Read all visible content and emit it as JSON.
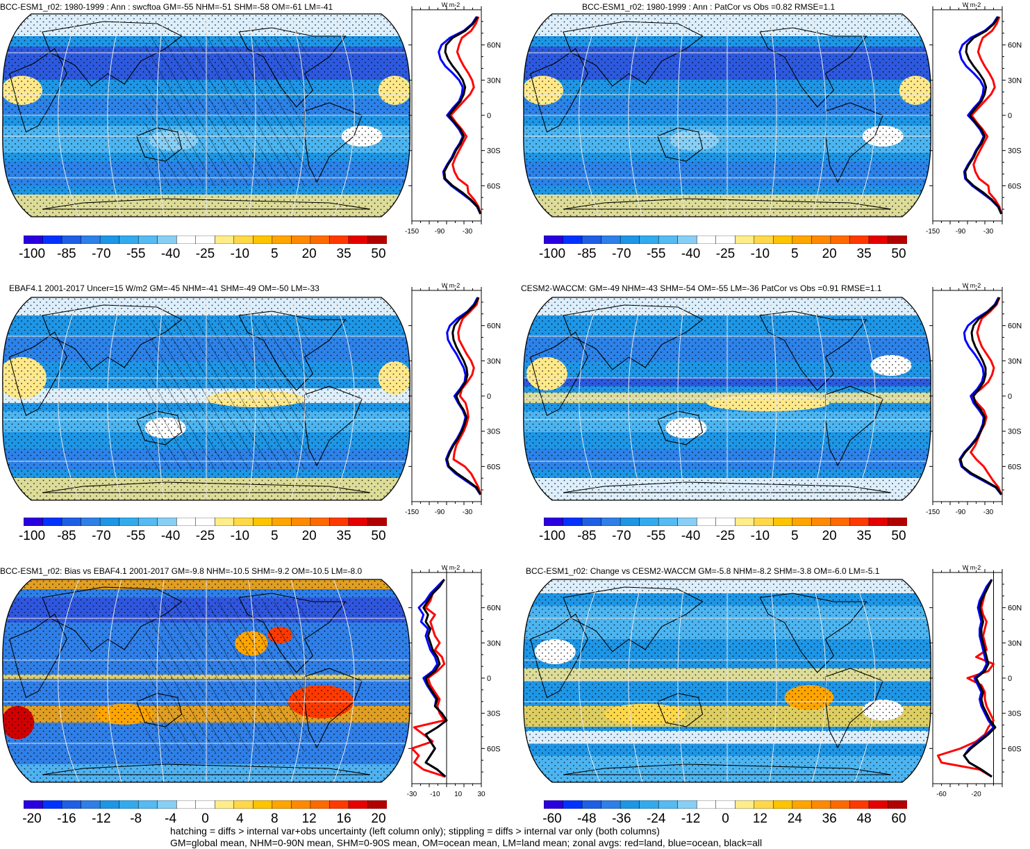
{
  "figure": {
    "footnote_line1": "hatching = diffs > internal var+obs uncertainty (left column only); stippling = diffs > internal var only (both columns)",
    "footnote_line2": "GM=global mean, NHM=0-90N mean, SHM=0-90S mean, OM=ocean mean, LM=land mean; zonal avgs: red=land, blue=ocean, black=all"
  },
  "colors": {
    "land_line": "#ff0000",
    "ocean_line": "#0000ff",
    "all_line": "#000000",
    "grid": "#e8e8e8"
  },
  "chart_data": [
    {
      "type": "heatmap",
      "id": "p1",
      "title": "BCC-ESM1_r02: 1980-1999 : Ann : swcftoa GM=-55 NHM=-51 SHM=-58 OM=-61 LM=-41",
      "colorbar": {
        "colors": [
          "#2a00e0",
          "#0033ff",
          "#1f5fe6",
          "#2f7fe8",
          "#1e96e6",
          "#33aaee",
          "#55bbf2",
          "#88cff5",
          "#ffffff",
          "#ffffff",
          "#ffed8a",
          "#ffd84a",
          "#ffc400",
          "#ffa500",
          "#ff8a00",
          "#ff6a00",
          "#ff3a00",
          "#e60000",
          "#b30000"
        ],
        "ticks": [
          "-100",
          "-85",
          "-70",
          "-55",
          "-40",
          "-25",
          "-10",
          "5",
          "20",
          "35",
          "50"
        ]
      },
      "profile": {
        "unit": "W m-2",
        "xticks": [
          "-150",
          "-90",
          "-30"
        ],
        "xlim": [
          -150,
          0
        ],
        "yticks": [
          "60N",
          "30N",
          "0",
          "30S",
          "60S"
        ],
        "ylim": [
          -90,
          90
        ],
        "lat": [
          -84,
          -78,
          -72,
          -66,
          -60,
          -54,
          -48,
          -42,
          -36,
          -30,
          -24,
          -18,
          -12,
          -6,
          0,
          6,
          12,
          18,
          24,
          30,
          36,
          42,
          48,
          54,
          60,
          66,
          72,
          78,
          84
        ],
        "all": [
          -2,
          -8,
          -22,
          -40,
          -62,
          -78,
          -80,
          -72,
          -62,
          -55,
          -45,
          -38,
          -45,
          -58,
          -70,
          -58,
          -45,
          -38,
          -35,
          -40,
          -50,
          -62,
          -72,
          -78,
          -76,
          -62,
          -35,
          -18,
          -8
        ],
        "ocean": [
          -2,
          -9,
          -24,
          -44,
          -65,
          -80,
          -82,
          -74,
          -64,
          -57,
          -47,
          -40,
          -48,
          -60,
          -74,
          -62,
          -48,
          -42,
          -40,
          -48,
          -62,
          -78,
          -88,
          -92,
          -86,
          -68,
          -38,
          -20,
          -10
        ],
        "land": [
          -2,
          -6,
          -15,
          -28,
          -30,
          -50,
          -58,
          -62,
          -56,
          -48,
          -40,
          -32,
          -42,
          -55,
          -66,
          -52,
          -38,
          -24,
          -16,
          -20,
          -28,
          -38,
          -46,
          -52,
          -48,
          -42,
          -22,
          -12,
          -6
        ]
      }
    },
    {
      "type": "heatmap",
      "id": "p2",
      "title": "BCC-ESM1_r02: 1980-1999 : Ann : PatCor vs Obs =0.82 RMSE=1.1",
      "colorbar": {
        "colors": [
          "#2a00e0",
          "#0033ff",
          "#1f5fe6",
          "#2f7fe8",
          "#1e96e6",
          "#33aaee",
          "#55bbf2",
          "#88cff5",
          "#ffffff",
          "#ffffff",
          "#ffed8a",
          "#ffd84a",
          "#ffc400",
          "#ffa500",
          "#ff8a00",
          "#ff6a00",
          "#ff3a00",
          "#e60000",
          "#b30000"
        ],
        "ticks": [
          "-100",
          "-85",
          "-70",
          "-55",
          "-40",
          "-25",
          "-10",
          "5",
          "20",
          "35",
          "50"
        ]
      },
      "profile": {
        "unit": "W m-2",
        "xticks": [
          "-150",
          "-90",
          "-30"
        ],
        "xlim": [
          -150,
          0
        ],
        "yticks": [
          "60N",
          "30N",
          "0",
          "30S",
          "60S"
        ],
        "ylim": [
          -90,
          90
        ],
        "lat": [
          -84,
          -78,
          -72,
          -66,
          -60,
          -54,
          -48,
          -42,
          -36,
          -30,
          -24,
          -18,
          -12,
          -6,
          0,
          6,
          12,
          18,
          24,
          30,
          36,
          42,
          48,
          54,
          60,
          66,
          72,
          78,
          84
        ],
        "all": [
          -2,
          -8,
          -22,
          -40,
          -62,
          -78,
          -80,
          -72,
          -62,
          -55,
          -45,
          -38,
          -45,
          -58,
          -70,
          -58,
          -45,
          -38,
          -35,
          -40,
          -50,
          -62,
          -72,
          -78,
          -76,
          -62,
          -35,
          -18,
          -8
        ],
        "ocean": [
          -2,
          -9,
          -24,
          -44,
          -65,
          -80,
          -82,
          -74,
          -64,
          -57,
          -47,
          -40,
          -48,
          -60,
          -74,
          -62,
          -48,
          -42,
          -40,
          -48,
          -62,
          -78,
          -88,
          -92,
          -86,
          -68,
          -38,
          -20,
          -10
        ],
        "land": [
          -2,
          -6,
          -15,
          -28,
          -30,
          -50,
          -58,
          -62,
          -56,
          -48,
          -40,
          -32,
          -42,
          -55,
          -66,
          -52,
          -38,
          -24,
          -16,
          -20,
          -28,
          -38,
          -46,
          -52,
          -48,
          -42,
          -22,
          -12,
          -6
        ]
      }
    },
    {
      "type": "heatmap",
      "id": "p3",
      "title": "EBAF4.1 2001-2017 Uncer=15 W/m2 GM=-45 NHM=-41 SHM=-49 OM=-50 LM=-33",
      "colorbar": {
        "colors": [
          "#2a00e0",
          "#0033ff",
          "#1f5fe6",
          "#2f7fe8",
          "#1e96e6",
          "#33aaee",
          "#55bbf2",
          "#88cff5",
          "#ffffff",
          "#ffffff",
          "#ffed8a",
          "#ffd84a",
          "#ffc400",
          "#ffa500",
          "#ff8a00",
          "#ff6a00",
          "#ff3a00",
          "#e60000",
          "#b30000"
        ],
        "ticks": [
          "-100",
          "-85",
          "-70",
          "-55",
          "-40",
          "-25",
          "-10",
          "5",
          "20",
          "35",
          "50"
        ]
      },
      "profile": {
        "unit": "W m-2",
        "xticks": [
          "-150",
          "-90",
          "-30"
        ],
        "xlim": [
          -150,
          0
        ],
        "yticks": [
          "60N",
          "30N",
          "0",
          "30S",
          "60S"
        ],
        "ylim": [
          -90,
          90
        ],
        "lat": [
          -84,
          -78,
          -72,
          -66,
          -60,
          -54,
          -48,
          -42,
          -36,
          -30,
          -24,
          -18,
          -12,
          -6,
          0,
          6,
          12,
          18,
          24,
          30,
          36,
          42,
          48,
          54,
          60,
          66,
          72,
          78,
          84
        ],
        "all": [
          -2,
          -10,
          -30,
          -52,
          -70,
          -74,
          -68,
          -60,
          -50,
          -42,
          -36,
          -32,
          -38,
          -48,
          -54,
          -44,
          -34,
          -30,
          -32,
          -38,
          -46,
          -54,
          -60,
          -62,
          -58,
          -46,
          -28,
          -14,
          -6
        ],
        "ocean": [
          -2,
          -12,
          -34,
          -56,
          -72,
          -76,
          -70,
          -62,
          -52,
          -44,
          -38,
          -34,
          -40,
          -50,
          -58,
          -46,
          -36,
          -34,
          -38,
          -46,
          -54,
          -64,
          -72,
          -74,
          -68,
          -52,
          -30,
          -16,
          -8
        ],
        "land": [
          -2,
          -6,
          -14,
          -22,
          -36,
          -60,
          -58,
          -54,
          -46,
          -38,
          -32,
          -28,
          -30,
          -34,
          -46,
          -42,
          -30,
          -20,
          -16,
          -22,
          -32,
          -40,
          -48,
          -50,
          -46,
          -40,
          -24,
          -10,
          -6
        ]
      }
    },
    {
      "type": "heatmap",
      "id": "p4",
      "title": "CESM2-WACCM: GM=-49 NHM=-43 SHM=-54 OM=-55 LM=-36 PatCor vs Obs =0.91 RMSE=1.1",
      "colorbar": {
        "colors": [
          "#2a00e0",
          "#0033ff",
          "#1f5fe6",
          "#2f7fe8",
          "#1e96e6",
          "#33aaee",
          "#55bbf2",
          "#88cff5",
          "#ffffff",
          "#ffffff",
          "#ffed8a",
          "#ffd84a",
          "#ffc400",
          "#ffa500",
          "#ff8a00",
          "#ff6a00",
          "#ff3a00",
          "#e60000",
          "#b30000"
        ],
        "ticks": [
          "-100",
          "-85",
          "-70",
          "-55",
          "-40",
          "-25",
          "-10",
          "5",
          "20",
          "35",
          "50"
        ]
      },
      "profile": {
        "unit": "W m-2",
        "xticks": [
          "-150",
          "-90",
          "-30"
        ],
        "xlim": [
          -150,
          0
        ],
        "yticks": [
          "60N",
          "30N",
          "0",
          "30S",
          "60S"
        ],
        "ylim": [
          -90,
          90
        ],
        "lat": [
          -84,
          -78,
          -72,
          -66,
          -60,
          -54,
          -48,
          -42,
          -36,
          -30,
          -24,
          -18,
          -12,
          -6,
          0,
          6,
          12,
          18,
          24,
          30,
          36,
          42,
          48,
          54,
          60,
          66,
          72,
          78,
          84
        ],
        "all": [
          -2,
          -12,
          -38,
          -66,
          -86,
          -90,
          -80,
          -66,
          -54,
          -46,
          -40,
          -38,
          -46,
          -58,
          -62,
          -50,
          -40,
          -36,
          -36,
          -42,
          -50,
          -58,
          -64,
          -66,
          -62,
          -50,
          -30,
          -14,
          -6
        ],
        "ocean": [
          -2,
          -14,
          -42,
          -70,
          -88,
          -92,
          -82,
          -68,
          -56,
          -48,
          -42,
          -40,
          -50,
          -62,
          -68,
          -54,
          -44,
          -40,
          -42,
          -50,
          -60,
          -72,
          -80,
          -82,
          -74,
          -56,
          -32,
          -16,
          -8
        ],
        "land": [
          -2,
          -8,
          -20,
          -30,
          -40,
          -56,
          -68,
          -58,
          -52,
          -46,
          -38,
          -34,
          -40,
          -54,
          -66,
          -46,
          -30,
          -22,
          -18,
          -24,
          -34,
          -44,
          -50,
          -54,
          -50,
          -44,
          -26,
          -12,
          -6
        ]
      }
    },
    {
      "type": "heatmap",
      "id": "p5",
      "title": "BCC-ESM1_r02: Bias vs EBAF4.1 2001-2017 GM=-9.8 NHM=-10.5 SHM=-9.2 OM=-10.5 LM=-8.0",
      "colorbar": {
        "colors": [
          "#2a00e0",
          "#0033ff",
          "#1f5fe6",
          "#2f7fe8",
          "#1e96e6",
          "#33aaee",
          "#55bbf2",
          "#88cff5",
          "#ffffff",
          "#ffffff",
          "#ffed8a",
          "#ffd84a",
          "#ffc400",
          "#ffa500",
          "#ff8a00",
          "#ff6a00",
          "#ff3a00",
          "#e60000",
          "#b30000"
        ],
        "ticks": [
          "-20",
          "-16",
          "-12",
          "-8",
          "-4",
          "0",
          "4",
          "8",
          "12",
          "16",
          "20"
        ]
      },
      "profile": {
        "unit": "W m-2",
        "xticks": [
          "-30",
          "-10",
          "10",
          "30"
        ],
        "xlim": [
          -30,
          30
        ],
        "yticks": [
          "60N",
          "30N",
          "0",
          "30S",
          "60S"
        ],
        "ylim": [
          -90,
          90
        ],
        "lat": [
          -84,
          -78,
          -72,
          -66,
          -60,
          -54,
          -48,
          -42,
          -36,
          -30,
          -24,
          -18,
          -12,
          -6,
          0,
          6,
          12,
          18,
          24,
          30,
          36,
          42,
          48,
          54,
          60,
          66,
          72,
          78,
          84
        ],
        "all": [
          -1,
          -8,
          -18,
          -14,
          -10,
          -14,
          -18,
          -8,
          0,
          -4,
          -10,
          -8,
          -12,
          -16,
          -18,
          -10,
          -6,
          -8,
          -12,
          -14,
          -16,
          -14,
          -18,
          -16,
          -20,
          -16,
          -12,
          -6,
          -2
        ],
        "ocean": [
          -1,
          -8,
          -18,
          -14,
          -10,
          -14,
          -18,
          -8,
          0,
          -4,
          -10,
          -9,
          -13,
          -17,
          -20,
          -12,
          -8,
          -10,
          -14,
          -16,
          -18,
          -16,
          -22,
          -20,
          -24,
          -18,
          -14,
          -8,
          -2
        ],
        "land": [
          -1,
          -20,
          -28,
          -24,
          -30,
          -12,
          -20,
          -28,
          -2,
          -6,
          -8,
          -6,
          -10,
          -14,
          -16,
          -8,
          -2,
          -4,
          -10,
          -6,
          -10,
          -12,
          -14,
          -10,
          -18,
          -14,
          -12,
          -8,
          -2
        ]
      }
    },
    {
      "type": "heatmap",
      "id": "p6",
      "title": "BCC-ESM1_r02: Change vs CESM2-WACCM GM=-5.8 NHM=-8.2 SHM=-3.8 OM=-6.0 LM=-5.1",
      "colorbar": {
        "colors": [
          "#2a00e0",
          "#0033ff",
          "#1f5fe6",
          "#2f7fe8",
          "#1e96e6",
          "#33aaee",
          "#55bbf2",
          "#88cff5",
          "#ffffff",
          "#ffffff",
          "#ffed8a",
          "#ffd84a",
          "#ffc400",
          "#ffa500",
          "#ff8a00",
          "#ff6a00",
          "#ff3a00",
          "#e60000",
          "#b30000"
        ],
        "ticks": [
          "-60",
          "-48",
          "-36",
          "-24",
          "-12",
          "0",
          "12",
          "24",
          "36",
          "48",
          "60"
        ]
      },
      "profile": {
        "unit": "W m-2",
        "xticks": [
          "-60",
          "-20"
        ],
        "xlim": [
          -70,
          10
        ],
        "yticks": [
          "60N",
          "30N",
          "0",
          "30S",
          "60S"
        ],
        "ylim": [
          -90,
          90
        ],
        "lat": [
          -84,
          -78,
          -72,
          -66,
          -60,
          -54,
          -48,
          -42,
          -36,
          -30,
          -24,
          -18,
          -12,
          -6,
          0,
          6,
          12,
          18,
          24,
          30,
          36,
          42,
          48,
          54,
          60,
          66,
          72,
          78,
          84
        ],
        "all": [
          -2,
          -14,
          -28,
          -34,
          -26,
          -16,
          -6,
          2,
          -4,
          -8,
          -12,
          -14,
          -12,
          -16,
          -20,
          -10,
          -6,
          -8,
          -10,
          -12,
          -14,
          -14,
          -12,
          -14,
          -16,
          -14,
          -10,
          -6,
          -2
        ],
        "ocean": [
          -2,
          -14,
          -28,
          -34,
          -28,
          -18,
          -8,
          0,
          -6,
          -10,
          -14,
          -16,
          -14,
          -18,
          -22,
          -12,
          -8,
          -10,
          -12,
          -14,
          -16,
          -16,
          -14,
          -16,
          -18,
          -16,
          -12,
          -8,
          -2
        ],
        "land": [
          -2,
          -16,
          -60,
          -64,
          -38,
          -20,
          -10,
          -6,
          0,
          -4,
          -8,
          -10,
          -10,
          -14,
          -30,
          -6,
          0,
          -20,
          -8,
          -10,
          -12,
          -10,
          -8,
          -12,
          -14,
          -12,
          -10,
          -6,
          -2
        ]
      }
    }
  ]
}
